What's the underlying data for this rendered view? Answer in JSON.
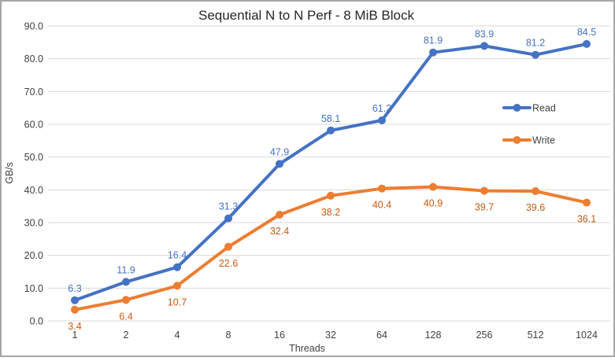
{
  "chart_data": {
    "type": "line",
    "title": "Sequential N to N Perf - 8 MiB Block",
    "xlabel": "Threads",
    "ylabel": "GB/s",
    "categories": [
      "1",
      "2",
      "4",
      "8",
      "16",
      "32",
      "64",
      "128",
      "256",
      "512",
      "1024"
    ],
    "series": [
      {
        "name": "Read",
        "color": "#4472C4",
        "label_color": "#4472C4",
        "label_position": "above",
        "values": [
          6.3,
          11.9,
          16.4,
          31.3,
          47.9,
          58.1,
          61.2,
          81.9,
          83.9,
          81.2,
          84.5
        ]
      },
      {
        "name": "Write",
        "color": "#ED7D31",
        "label_color": "#C55A11",
        "label_position": "below",
        "values": [
          3.4,
          6.4,
          10.7,
          22.6,
          32.4,
          38.2,
          40.4,
          40.9,
          39.7,
          39.6,
          36.1
        ]
      }
    ],
    "ylim": [
      0,
      90
    ],
    "y_ticks": [
      "0.0",
      "10.0",
      "20.0",
      "30.0",
      "40.0",
      "50.0",
      "60.0",
      "70.0",
      "80.0",
      "90.0"
    ],
    "grid": true,
    "legend_position": "inside-right",
    "colors": {
      "gridline": "#D9D9D9",
      "axis_tick_text": "#404040",
      "title_text": "#262626",
      "legend_text": "#404040",
      "frame_border": "#A6A6A6"
    }
  }
}
